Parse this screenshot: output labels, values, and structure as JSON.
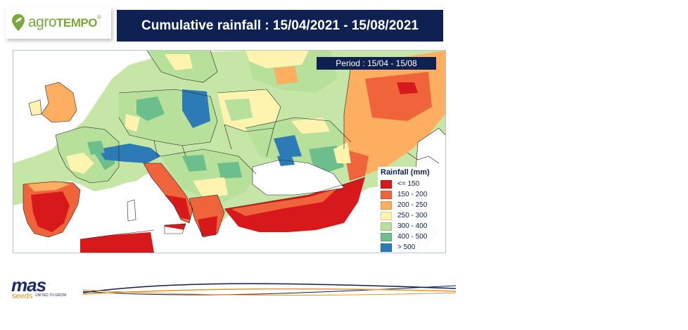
{
  "header": {
    "logo_brand": "agroTEMPO",
    "title": "Cumulative rainfall : 15/04/2021 - 15/08/2021"
  },
  "map": {
    "period_label": "Period : 15/04 - 15/08",
    "legend": {
      "title": "Rainfall (mm)",
      "items": [
        {
          "label": "<= 150",
          "color": "#d7191c"
        },
        {
          "label": "150 - 200",
          "color": "#f0643c"
        },
        {
          "label": "200 - 250",
          "color": "#fdae61"
        },
        {
          "label": "250 - 300",
          "color": "#fff3b0"
        },
        {
          "label": "300 - 400",
          "color": "#b7e09a"
        },
        {
          "label": "400 - 500",
          "color": "#6cbf8c"
        },
        {
          "label": "> 500",
          "color": "#2c7bb6"
        }
      ]
    }
  },
  "footer": {
    "brand": "mas",
    "brand_sub": "seeds",
    "slogan": "UNITED TO GROW"
  },
  "colors": {
    "navy": "#0f2153",
    "sea": "#ffffff",
    "border": "#222222"
  }
}
